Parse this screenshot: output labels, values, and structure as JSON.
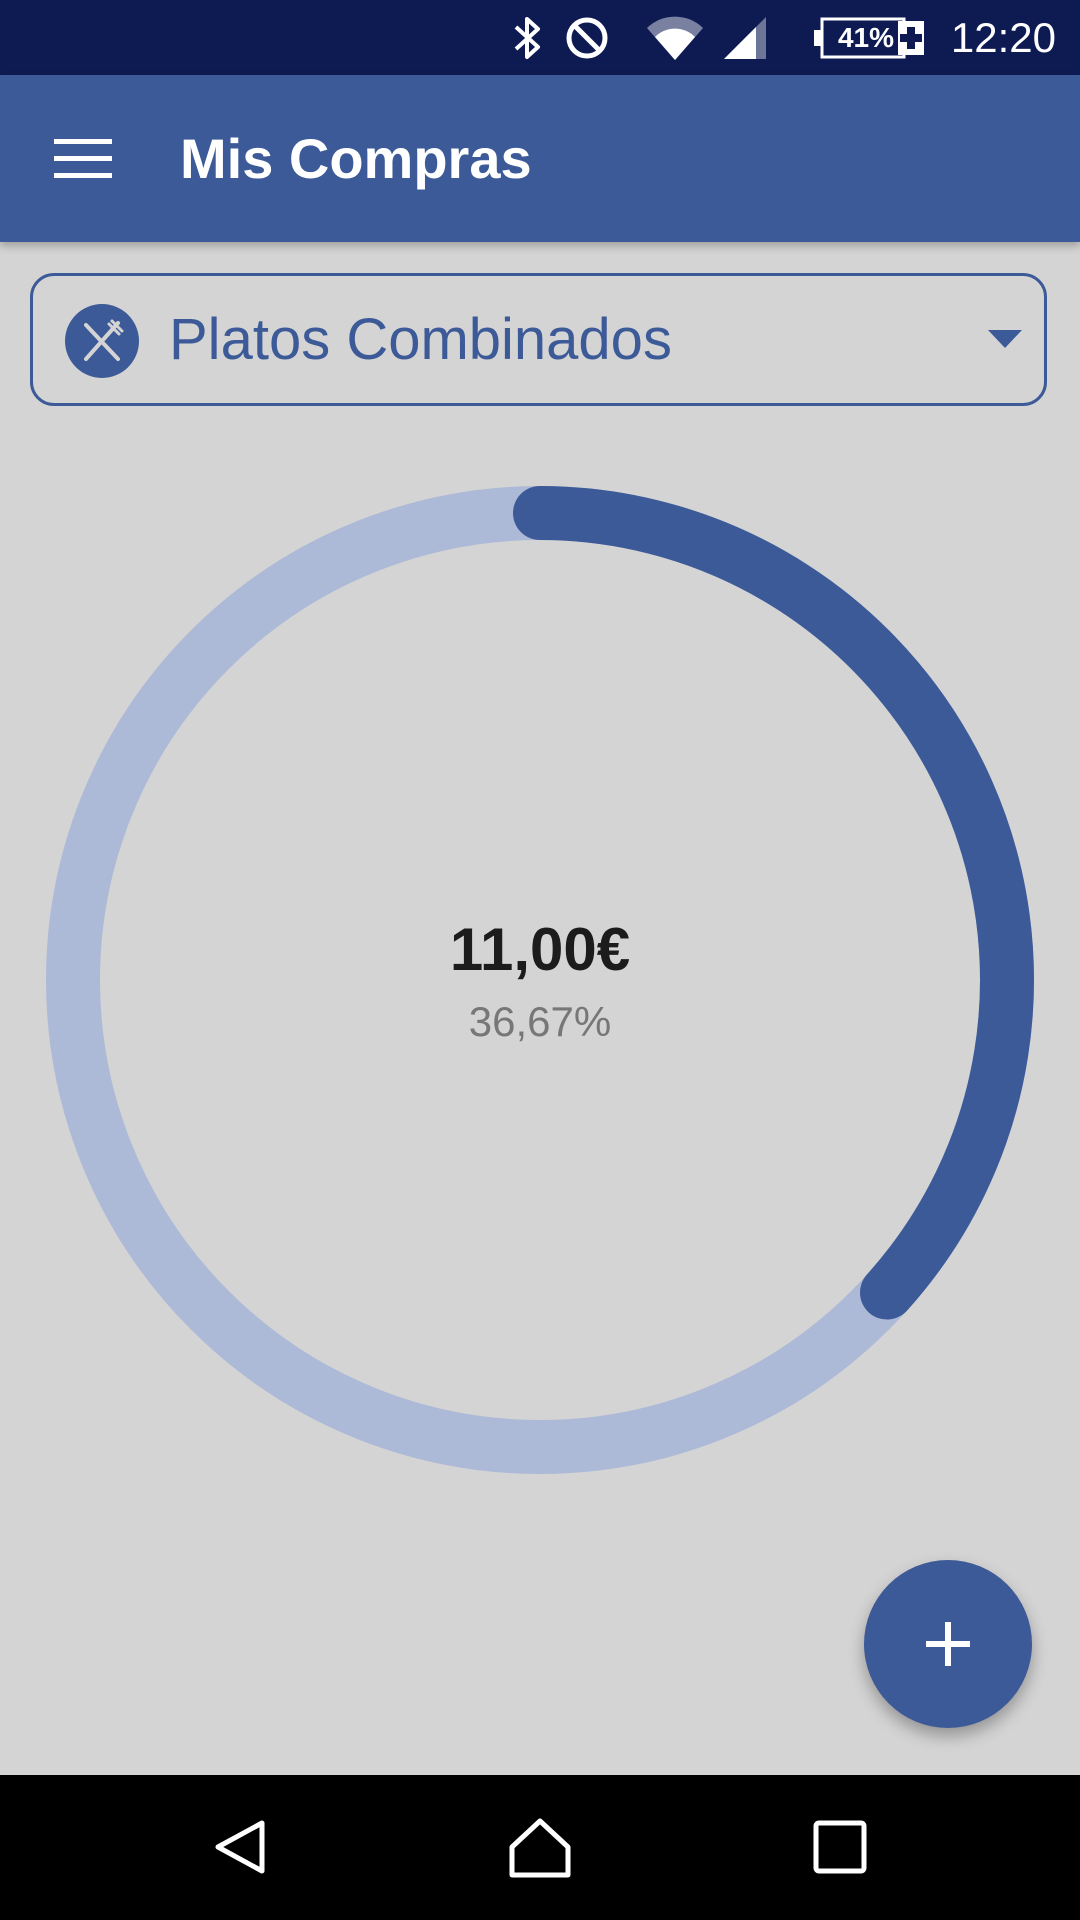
{
  "status_bar": {
    "battery_percent": "41%",
    "time": "12:20",
    "icons": [
      "bluetooth-icon",
      "do-not-disturb-icon",
      "wifi-icon",
      "cell-signal-icon",
      "battery-charging-icon"
    ]
  },
  "app_bar": {
    "title": "Mis Compras",
    "menu_icon": "hamburger-menu-icon"
  },
  "category_selector": {
    "icon": "cutlery-icon",
    "selected": "Platos Combinados",
    "arrow_icon": "dropdown-arrow-icon"
  },
  "summary": {
    "amount": "11,00€",
    "percent": "36,67%",
    "progress_fraction": 0.3667
  },
  "fab": {
    "icon": "plus-icon"
  },
  "nav_bar": {
    "icons": [
      "back-icon",
      "home-icon",
      "recents-icon"
    ]
  },
  "colors": {
    "primary": "#3d5a98",
    "track": "#adbad7",
    "status_bar": "#0e1b53",
    "background": "#d4d4d4"
  }
}
